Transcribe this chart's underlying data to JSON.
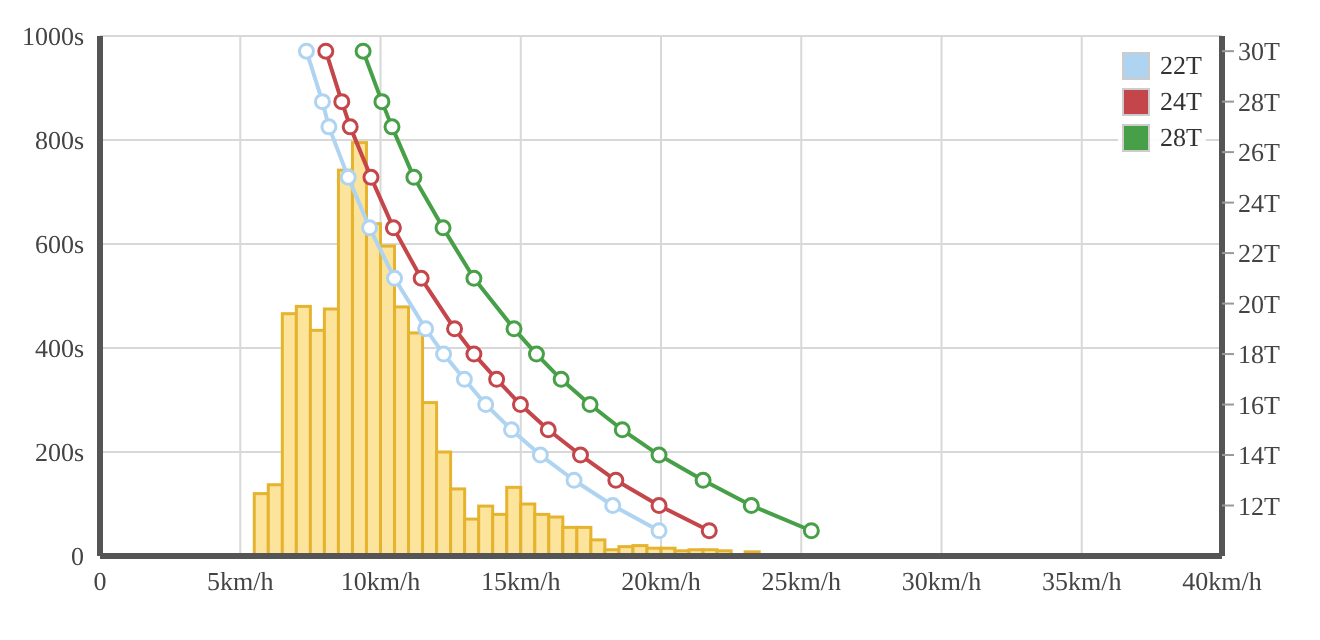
{
  "chart_data": {
    "type": "histogram",
    "bins": [
      5,
      5.5,
      6,
      6.5,
      7,
      7.5,
      8,
      8.5,
      9,
      9.5,
      10,
      10.5,
      11,
      11.5,
      12,
      12.5,
      13,
      13.5,
      14,
      14.5,
      15,
      15.5,
      16,
      16.5,
      17,
      17.5,
      18,
      18.5,
      19,
      19.5,
      20,
      20.5,
      21,
      21.5,
      22,
      22.5,
      23,
      23.5,
      24,
      24.5,
      25
    ],
    "values": [
      null,
      120,
      137,
      466,
      480,
      434,
      475,
      742,
      795,
      639,
      596,
      479,
      429,
      295,
      200,
      129,
      71,
      96,
      80,
      132,
      100,
      80,
      75,
      55,
      55,
      31,
      12,
      18,
      20,
      15,
      15,
      10,
      12,
      12,
      10,
      null,
      8,
      null,
      null,
      null
    ],
    "color": "#fce49c",
    "series": [
      {
        "type": "line",
        "name": "22T",
        "color": "#aed4f2",
        "axis": "y2",
        "x": [
          7.36,
          7.93,
          8.16,
          8.85,
          9.61,
          10.5,
          11.61,
          12.25,
          12.99,
          13.75,
          14.67,
          15.7,
          16.9,
          18.28,
          19.93
        ],
        "values": [
          30,
          28,
          27,
          25,
          23,
          21,
          19,
          18,
          17,
          16,
          15,
          14,
          13,
          12,
          11
        ]
      },
      {
        "type": "line",
        "name": "24T",
        "color": "#c4464a",
        "axis": "y2",
        "x": [
          8.05,
          8.62,
          8.92,
          9.66,
          10.46,
          11.45,
          12.64,
          13.33,
          14.14,
          14.99,
          15.98,
          17.13,
          18.39,
          19.93,
          21.72
        ],
        "values": [
          30,
          28,
          27,
          25,
          23,
          21,
          19,
          18,
          17,
          16,
          15,
          14,
          13,
          12,
          11
        ]
      },
      {
        "type": "line",
        "name": "28T",
        "color": "#47a047",
        "axis": "y2",
        "x": [
          9.38,
          10.05,
          10.41,
          11.19,
          12.23,
          13.33,
          14.76,
          15.56,
          16.44,
          17.47,
          18.62,
          19.93,
          21.5,
          23.22,
          25.36
        ],
        "values": [
          30,
          28,
          27,
          25,
          23,
          21,
          19,
          18,
          17,
          16,
          15,
          14,
          13,
          12,
          11
        ]
      }
    ],
    "xlim": [
      0,
      40
    ],
    "xticks": [
      0,
      {
        "value": 5,
        "label": "5km/h"
      },
      {
        "value": 10,
        "label": "10km/h"
      },
      {
        "value": 15,
        "label": "15km/h"
      },
      {
        "value": 20,
        "label": "20km/h"
      },
      {
        "value": 25,
        "label": "25km/h"
      },
      {
        "value": 30,
        "label": "30km/h"
      },
      {
        "value": 35,
        "label": "35km/h"
      },
      {
        "value": 40,
        "label": "40km/h"
      }
    ],
    "ylim": [
      0,
      1000
    ],
    "yticks": [
      0,
      {
        "value": 200,
        "label": "200s"
      },
      {
        "value": 400,
        "label": "400s"
      },
      {
        "value": 600,
        "label": "600s"
      },
      {
        "value": 800,
        "label": "800s"
      },
      {
        "value": 1000,
        "label": "1000s"
      }
    ],
    "y2lim": [
      10,
      30.6
    ],
    "y2ticks": [
      {
        "value": 12,
        "label": "12T"
      },
      {
        "value": 14,
        "label": "14T"
      },
      {
        "value": 16,
        "label": "16T"
      },
      {
        "value": 18,
        "label": "18T"
      },
      {
        "value": 20,
        "label": "20T"
      },
      {
        "value": 22,
        "label": "22T"
      },
      {
        "value": 24,
        "label": "24T"
      },
      {
        "value": 26,
        "label": "26T"
      },
      {
        "value": 28,
        "label": "28T"
      },
      {
        "value": 30,
        "label": "30T"
      }
    ],
    "grid": true,
    "legend": "top right",
    "marker": "circle"
  }
}
